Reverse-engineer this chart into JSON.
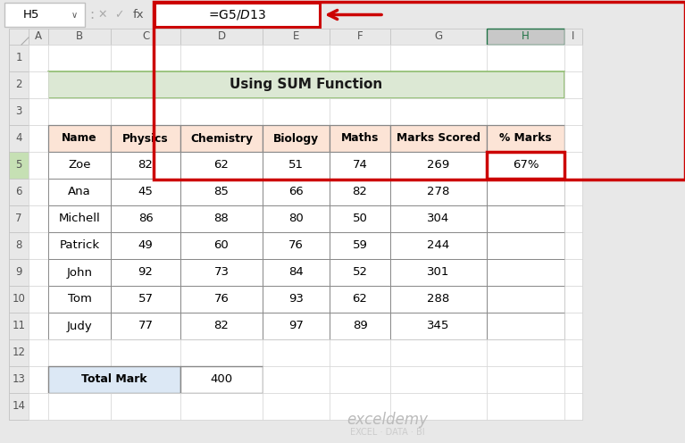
{
  "title": "Using SUM Function",
  "formula_bar_cell": "H5",
  "formula_bar_formula": "=G5/$D$13",
  "col_labels": [
    "A",
    "B",
    "C",
    "D",
    "E",
    "F",
    "G",
    "H",
    "I"
  ],
  "row_labels": [
    "1",
    "2",
    "3",
    "4",
    "5",
    "6",
    "7",
    "8",
    "9",
    "10",
    "11",
    "12",
    "13",
    "14"
  ],
  "table_headers": [
    "Name",
    "Physics",
    "Chemistry",
    "Biology",
    "Maths",
    "Marks Scored",
    "% Marks"
  ],
  "table_data": [
    [
      "Zoe",
      "82",
      "62",
      "51",
      "74",
      "269",
      "67%"
    ],
    [
      "Ana",
      "45",
      "85",
      "66",
      "82",
      "278",
      ""
    ],
    [
      "Michell",
      "86",
      "88",
      "80",
      "50",
      "304",
      ""
    ],
    [
      "Patrick",
      "49",
      "60",
      "76",
      "59",
      "244",
      ""
    ],
    [
      "John",
      "92",
      "73",
      "84",
      "52",
      "301",
      ""
    ],
    [
      "Tom",
      "57",
      "76",
      "93",
      "62",
      "288",
      ""
    ],
    [
      "Judy",
      "77",
      "82",
      "97",
      "89",
      "345",
      ""
    ]
  ],
  "total_mark_label": "Total Mark",
  "total_mark_value": "400",
  "bg_color": "#e8e8e8",
  "sheet_bg": "#ffffff",
  "title_bg": "#dce8d4",
  "title_border_color": "#8fbc6e",
  "header_bg": "#fce4d6",
  "col_header_bg": "#e8e8e8",
  "col_header_selected_bg": "#c8c8c8",
  "row_header_bg": "#e8e8e8",
  "row_header_selected_bg": "#c6e0b4",
  "formula_box_border": "#cc0000",
  "h5_cell_border": "#cc0000",
  "arrow_color": "#cc0000",
  "total_mark_bg": "#dce8f5",
  "col_header_selected_text": "#217346",
  "watermark_text": "exceldemy",
  "watermark_sub": "EXCEL · DATA · BI"
}
